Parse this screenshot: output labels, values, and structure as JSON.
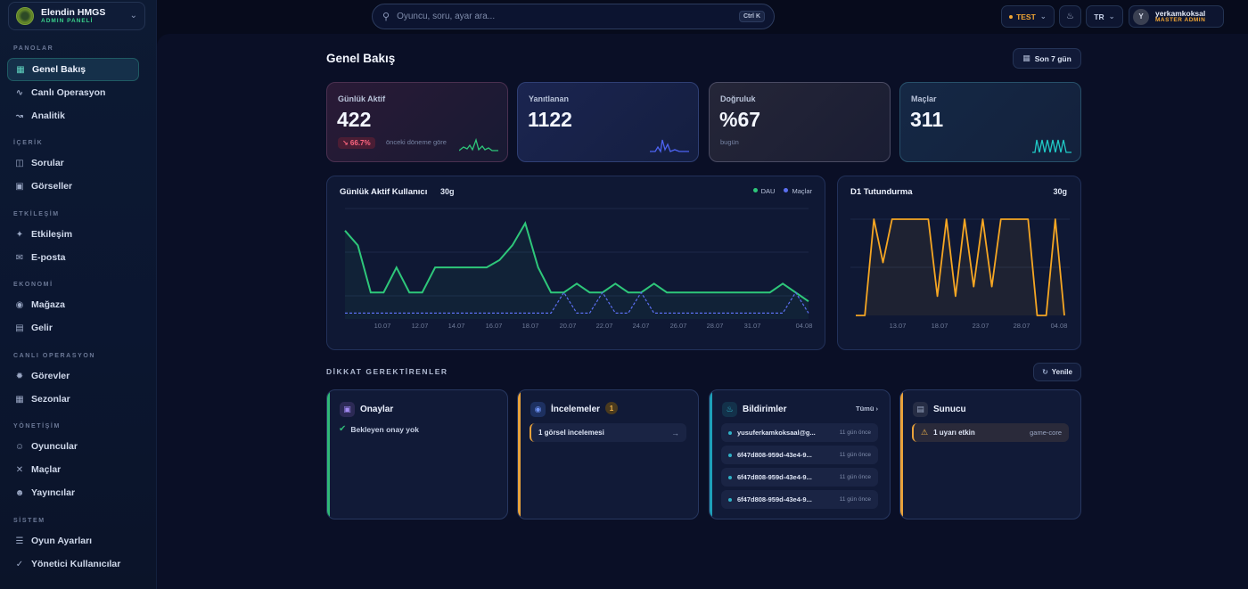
{
  "brand": {
    "name": "Elendin HMGS",
    "subtitle": "ADMIN PANELİ"
  },
  "sidebar": {
    "sections": [
      {
        "title": "PANOLAR",
        "items": [
          {
            "label": "Genel Bakış",
            "icon": "grid-icon",
            "active": true
          },
          {
            "label": "Canlı Operasyon",
            "icon": "pulse-icon"
          },
          {
            "label": "Analitik",
            "icon": "chart-icon"
          }
        ]
      },
      {
        "title": "İÇERİK",
        "items": [
          {
            "label": "Sorular",
            "icon": "book-icon"
          },
          {
            "label": "Görseller",
            "icon": "image-icon"
          }
        ]
      },
      {
        "title": "ETKİLEŞİM",
        "items": [
          {
            "label": "Etkileşim",
            "icon": "sparkle-icon"
          },
          {
            "label": "E-posta",
            "icon": "mail-icon"
          }
        ]
      },
      {
        "title": "EKONOMİ",
        "items": [
          {
            "label": "Mağaza",
            "icon": "coins-icon"
          },
          {
            "label": "Gelir",
            "icon": "receipt-icon"
          }
        ]
      },
      {
        "title": "CANLI OPERASYON",
        "items": [
          {
            "label": "Görevler",
            "icon": "target-icon"
          },
          {
            "label": "Sezonlar",
            "icon": "calendar-icon"
          }
        ]
      },
      {
        "title": "YÖNETİŞİM",
        "items": [
          {
            "label": "Oyuncular",
            "icon": "users-icon"
          },
          {
            "label": "Maçlar",
            "icon": "swords-icon"
          },
          {
            "label": "Yayıncılar",
            "icon": "broadcaster-icon"
          }
        ]
      },
      {
        "title": "SİSTEM",
        "items": [
          {
            "label": "Oyun Ayarları",
            "icon": "sliders-icon"
          },
          {
            "label": "Yönetici Kullanıcılar",
            "icon": "shield-check-icon"
          }
        ]
      }
    ]
  },
  "topbar": {
    "search_placeholder": "Oyuncu, soru, ayar ara...",
    "shortcut": "Ctrl K",
    "env_label": "TEST",
    "lang": "TR",
    "user": {
      "initial": "Y",
      "name": "yerkamkoksal",
      "role": "MASTER ADMIN"
    }
  },
  "page": {
    "title": "Genel Bakış",
    "range_label": "Son 7 gün"
  },
  "kpis": [
    {
      "label": "Günlük Aktif",
      "value": "422",
      "delta": "↘ 66.7%",
      "sub": "önceki döneme göre",
      "color": "#2ec77a"
    },
    {
      "label": "Yanıtlanan",
      "value": "1122",
      "color": "#4d63f2"
    },
    {
      "label": "Doğruluk",
      "value": "%67",
      "sub": "bugün"
    },
    {
      "label": "Maçlar",
      "value": "311",
      "color": "#20c9c6"
    }
  ],
  "chart_data": [
    {
      "type": "line",
      "title": "Günlük Aktif Kullanıcı",
      "period": "30g",
      "x_ticks": [
        "10.07",
        "12.07",
        "14.07",
        "16.07",
        "18.07",
        "20.07",
        "22.07",
        "24.07",
        "26.07",
        "28.07",
        "31.07",
        "04.08"
      ],
      "series": [
        {
          "name": "DAU",
          "color": "#2ec77a",
          "values": [
            60,
            50,
            18,
            18,
            35,
            18,
            18,
            35,
            35,
            35,
            35,
            35,
            40,
            50,
            65,
            35,
            18,
            18,
            24,
            18,
            18,
            24,
            18,
            18,
            24,
            18,
            18,
            18,
            18,
            18,
            18,
            18,
            18,
            18,
            24,
            18,
            12
          ]
        },
        {
          "name": "Maçlar",
          "color": "#5b6ff0",
          "values": [
            4,
            4,
            4,
            4,
            4,
            4,
            4,
            4,
            4,
            4,
            4,
            4,
            4,
            4,
            4,
            4,
            4,
            18,
            4,
            4,
            18,
            4,
            4,
            18,
            4,
            4,
            4,
            4,
            4,
            4,
            4,
            4,
            4,
            4,
            4,
            18,
            4
          ]
        }
      ]
    },
    {
      "type": "line",
      "title": "D1 Tutundurma",
      "period": "30g",
      "x_ticks": [
        "13.07",
        "18.07",
        "23.07",
        "28.07",
        "04.08"
      ],
      "series": [
        {
          "color": "#f5a623",
          "values": [
            0,
            0,
            100,
            55,
            100,
            100,
            100,
            100,
            100,
            20,
            100,
            20,
            100,
            30,
            100,
            30,
            100,
            100,
            100,
            100,
            0,
            0,
            100,
            0
          ]
        }
      ]
    }
  ],
  "attention": {
    "title": "DİKKAT GEREKTİRENLER",
    "refresh_label": "Yenile",
    "cards": [
      {
        "title": "Onaylar",
        "icon": "stamp-icon",
        "accent": "#2fb877",
        "empty_text": "Bekleyen onay yok"
      },
      {
        "title": "İncelemeler",
        "icon": "review-icon",
        "accent": "#e9a23b",
        "count": "1",
        "items": [
          {
            "text": "1 görsel incelemesi"
          }
        ]
      },
      {
        "title": "Bildirimler",
        "icon": "bell-icon",
        "accent": "#1e9fb8",
        "all_label": "Tümü",
        "items": [
          {
            "text": "yusuferkamkoksaal@g...",
            "time": "11 gün önce"
          },
          {
            "text": "6f47d808-959d-43e4-9...",
            "time": "11 gün önce"
          },
          {
            "text": "6f47d808-959d-43e4-9...",
            "time": "11 gün önce"
          },
          {
            "text": "6f47d808-959d-43e4-9...",
            "time": "11 gün önce"
          }
        ]
      },
      {
        "title": "Sunucu",
        "icon": "server-icon",
        "accent": "#e9a23b",
        "items": [
          {
            "text": "1 uyarı etkin",
            "tag": "game-core"
          }
        ]
      }
    ]
  }
}
